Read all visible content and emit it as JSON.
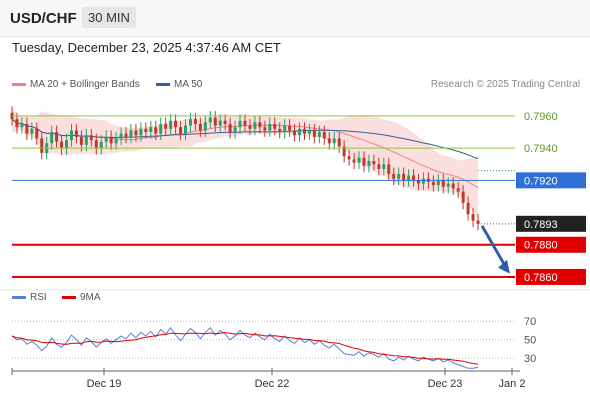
{
  "header": {
    "symbol": "USD/CHF",
    "interval": "30 MIN",
    "timestamp": "Tuesday, December 23, 2025 4:37:46 AM CET",
    "research": "Research © 2025 Trading Central"
  },
  "legend": {
    "ma20": "MA 20 + Bollinger Bands",
    "ma50": "MA 50",
    "ma20_color": "#f08080",
    "ma50_color": "#34609c"
  },
  "rsi_legend": {
    "rsi": "RSI",
    "ma9": "9MA",
    "rsi_color": "#5b7fd6",
    "ma9_color": "#e00000"
  },
  "chart_data": {
    "type": "candlestick",
    "price_levels": [
      {
        "label": "0.7960",
        "value": 0.796,
        "kind": "resistance",
        "color": "#8cc63f"
      },
      {
        "label": "0.7940",
        "value": 0.794,
        "kind": "resistance",
        "color": "#8cc63f"
      },
      {
        "label": "0.7920",
        "value": 0.792,
        "kind": "pivot",
        "color": "#2f6fd6"
      },
      {
        "label": "0.7893",
        "value": 0.7893,
        "kind": "last",
        "color": "#222222"
      },
      {
        "label": "0.7880",
        "value": 0.788,
        "kind": "support",
        "color": "#e00000"
      },
      {
        "label": "0.7860",
        "value": 0.786,
        "kind": "support",
        "color": "#e00000"
      }
    ],
    "x_ticks": [
      "Dec 19",
      "Dec 22",
      "Dec 23",
      "Jan 2"
    ],
    "rsi_ticks": [
      70,
      50,
      30
    ],
    "price_ylim": [
      0.7855,
      0.7973
    ],
    "rsi_ylim": [
      15,
      80
    ],
    "close": [
      0.7958,
      0.7953,
      0.7955,
      0.7949,
      0.7952,
      0.7946,
      0.7937,
      0.7943,
      0.795,
      0.7944,
      0.794,
      0.7945,
      0.7951,
      0.7947,
      0.7942,
      0.7948,
      0.7945,
      0.794,
      0.7944,
      0.7947,
      0.7943,
      0.7946,
      0.7949,
      0.7947,
      0.7951,
      0.7948,
      0.7952,
      0.795,
      0.7953,
      0.7949,
      0.7955,
      0.7952,
      0.7957,
      0.7953,
      0.7949,
      0.7954,
      0.7958,
      0.7955,
      0.7951,
      0.7956,
      0.7959,
      0.7954,
      0.7957,
      0.7955,
      0.795,
      0.7953,
      0.7957,
      0.7954,
      0.7952,
      0.7956,
      0.7953,
      0.7951,
      0.7955,
      0.7952,
      0.795,
      0.7954,
      0.7951,
      0.7948,
      0.7952,
      0.7949,
      0.7951,
      0.7947,
      0.795,
      0.7946,
      0.7943,
      0.7946,
      0.7941,
      0.7935,
      0.7933,
      0.7931,
      0.7934,
      0.7929,
      0.7932,
      0.793,
      0.7927,
      0.793,
      0.7924,
      0.7921,
      0.7924,
      0.792,
      0.7923,
      0.792,
      0.7918,
      0.7921,
      0.7919,
      0.7917,
      0.792,
      0.7916,
      0.7918,
      0.7915,
      0.7913,
      0.7906,
      0.7899,
      0.7895,
      0.7893
    ],
    "rsi": [
      54,
      50,
      51,
      45,
      48,
      44,
      38,
      43,
      52,
      45,
      42,
      47,
      55,
      50,
      44,
      52,
      48,
      42,
      47,
      51,
      46,
      50,
      54,
      51,
      57,
      52,
      58,
      54,
      59,
      53,
      61,
      56,
      63,
      55,
      49,
      56,
      62,
      58,
      51,
      58,
      63,
      55,
      60,
      56,
      50,
      54,
      60,
      55,
      52,
      57,
      53,
      50,
      56,
      51,
      48,
      54,
      49,
      46,
      52,
      47,
      50,
      45,
      49,
      44,
      41,
      45,
      40,
      35,
      34,
      33,
      37,
      32,
      36,
      34,
      31,
      35,
      29,
      27,
      31,
      28,
      32,
      29,
      27,
      31,
      29,
      27,
      30,
      26,
      28,
      25,
      23,
      21,
      19,
      19,
      20
    ]
  }
}
